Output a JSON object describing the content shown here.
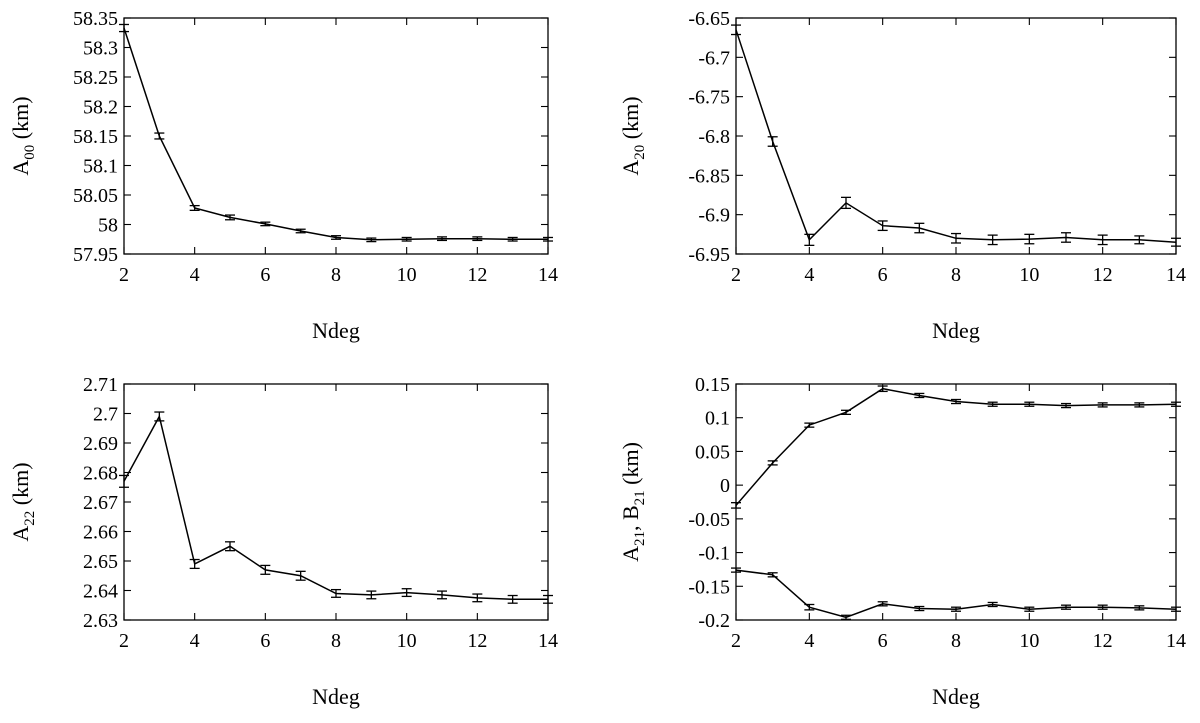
{
  "chart_data": [
    {
      "type": "line",
      "title": "",
      "xlabel": "Ndeg",
      "ylabel": {
        "base": "A",
        "sub": "00",
        "rest": " (km)"
      },
      "xlim": [
        2,
        14
      ],
      "ylim": [
        57.95,
        58.35
      ],
      "xticks": [
        2,
        4,
        6,
        8,
        10,
        12,
        14
      ],
      "yticks": [
        57.95,
        58.0,
        58.05,
        58.1,
        58.15,
        58.2,
        58.25,
        58.3,
        58.35
      ],
      "ytick_labels": [
        "57.95",
        "58",
        "58.05",
        "58.1",
        "58.15",
        "58.2",
        "58.25",
        "58.3",
        "58.35"
      ],
      "x": [
        2,
        3,
        4,
        5,
        6,
        7,
        8,
        9,
        10,
        11,
        12,
        13,
        14
      ],
      "series": [
        {
          "name": "A00",
          "values": [
            58.333,
            58.15,
            58.028,
            58.012,
            58.001,
            57.989,
            57.978,
            57.974,
            57.975,
            57.976,
            57.976,
            57.975,
            57.975
          ],
          "errors": [
            0.006,
            0.005,
            0.004,
            0.004,
            0.003,
            0.003,
            0.003,
            0.003,
            0.003,
            0.003,
            0.003,
            0.003,
            0.003
          ]
        }
      ]
    },
    {
      "type": "line",
      "title": "",
      "xlabel": "Ndeg",
      "ylabel": {
        "base": "A",
        "sub": "20",
        "rest": " (km)"
      },
      "xlim": [
        2,
        14
      ],
      "ylim": [
        -6.95,
        -6.65
      ],
      "xticks": [
        2,
        4,
        6,
        8,
        10,
        12,
        14
      ],
      "yticks": [
        -6.95,
        -6.9,
        -6.85,
        -6.8,
        -6.75,
        -6.7,
        -6.65
      ],
      "ytick_labels": [
        "-6.95",
        "-6.9",
        "-6.85",
        "-6.8",
        "-6.75",
        "-6.7",
        "-6.65"
      ],
      "x": [
        2,
        3,
        4,
        5,
        6,
        7,
        8,
        9,
        10,
        11,
        12,
        13,
        14
      ],
      "series": [
        {
          "name": "A20",
          "values": [
            -6.665,
            -6.807,
            -6.932,
            -6.885,
            -6.914,
            -6.917,
            -6.93,
            -6.932,
            -6.931,
            -6.929,
            -6.932,
            -6.932,
            -6.935
          ],
          "errors": [
            0.006,
            0.006,
            0.007,
            0.007,
            0.006,
            0.006,
            0.006,
            0.006,
            0.006,
            0.006,
            0.006,
            0.005,
            0.005
          ]
        }
      ]
    },
    {
      "type": "line",
      "title": "",
      "xlabel": "Ndeg",
      "ylabel": {
        "base": "A",
        "sub": "22",
        "rest": " (km)"
      },
      "xlim": [
        2,
        14
      ],
      "ylim": [
        2.63,
        2.71
      ],
      "xticks": [
        2,
        4,
        6,
        8,
        10,
        12,
        14
      ],
      "yticks": [
        2.63,
        2.64,
        2.65,
        2.66,
        2.67,
        2.68,
        2.69,
        2.7,
        2.71
      ],
      "ytick_labels": [
        "2.63",
        "2.64",
        "2.65",
        "2.66",
        "2.67",
        "2.68",
        "2.69",
        "2.7",
        "2.71"
      ],
      "x": [
        2,
        3,
        4,
        5,
        6,
        7,
        8,
        9,
        10,
        11,
        12,
        13,
        14
      ],
      "series": [
        {
          "name": "A22",
          "values": [
            2.677,
            2.699,
            2.649,
            2.655,
            2.647,
            2.645,
            2.639,
            2.6385,
            2.6393,
            2.6385,
            2.6375,
            2.637,
            2.637
          ],
          "errors": [
            0.002,
            0.0015,
            0.0015,
            0.0015,
            0.0015,
            0.0015,
            0.0013,
            0.0013,
            0.0013,
            0.0013,
            0.0013,
            0.0013,
            0.0013
          ]
        }
      ]
    },
    {
      "type": "line",
      "title": "",
      "xlabel": "Ndeg",
      "ylabel": {
        "base": "A",
        "sub": "21",
        "mid": ", B",
        "sub2": "21",
        "rest": " (km)"
      },
      "xlim": [
        2,
        14
      ],
      "ylim": [
        -0.2,
        0.15
      ],
      "xticks": [
        2,
        4,
        6,
        8,
        10,
        12,
        14
      ],
      "yticks": [
        -0.2,
        -0.15,
        -0.1,
        -0.05,
        0,
        0.05,
        0.1,
        0.15
      ],
      "ytick_labels": [
        "-0.2",
        "-0.15",
        "-0.1",
        "-0.05",
        "0",
        "0.05",
        "0.1",
        "0.15"
      ],
      "x": [
        2,
        3,
        4,
        5,
        6,
        7,
        8,
        9,
        10,
        11,
        12,
        13,
        14
      ],
      "series": [
        {
          "name": "A21",
          "values": [
            -0.03,
            0.033,
            0.089,
            0.108,
            0.143,
            0.133,
            0.124,
            0.12,
            0.12,
            0.118,
            0.119,
            0.119,
            0.12
          ],
          "errors": [
            0.004,
            0.003,
            0.003,
            0.003,
            0.004,
            0.003,
            0.003,
            0.003,
            0.003,
            0.003,
            0.003,
            0.003,
            0.003
          ]
        },
        {
          "name": "B21",
          "values": [
            -0.126,
            -0.133,
            -0.181,
            -0.196,
            -0.176,
            -0.183,
            -0.184,
            -0.177,
            -0.184,
            -0.181,
            -0.181,
            -0.182,
            -0.184
          ],
          "errors": [
            0.003,
            0.003,
            0.004,
            0.003,
            0.003,
            0.003,
            0.003,
            0.003,
            0.003,
            0.003,
            0.003,
            0.003,
            0.003
          ]
        }
      ]
    }
  ]
}
